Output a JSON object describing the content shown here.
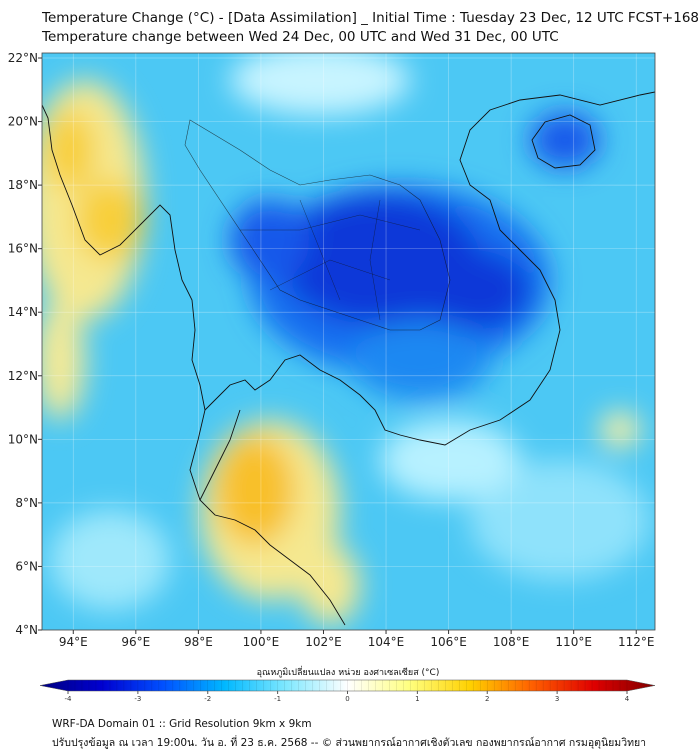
{
  "header": {
    "title_line1": "Temperature Change (°C) - [Data Assimilation] _ Initial Time : Tuesday 23 Dec, 12 UTC FCST+168",
    "title_line2": "Temperature change between Wed 24 Dec, 00 UTC and Wed 31 Dec, 00 UTC"
  },
  "map": {
    "lat_labels": [
      "4°N",
      "6°N",
      "8°N",
      "10°N",
      "12°N",
      "14°N",
      "16°N",
      "18°N",
      "20°N",
      "22°N"
    ],
    "lon_labels": [
      "94°E",
      "96°E",
      "98°E",
      "100°E",
      "102°E",
      "104°E",
      "106°E",
      "108°E",
      "110°E",
      "112°E"
    ],
    "lat_range": [
      4,
      22
    ],
    "lon_range": [
      93,
      112.6
    ]
  },
  "colorbar": {
    "title": "อุณหภูมิเปลี่ยนแปลง หน่วย องศาเซลเซียส (°C)",
    "ticks": [
      "-4",
      "-3",
      "-2",
      "-1",
      "0",
      "1",
      "2",
      "3",
      "4"
    ],
    "range": [
      -4,
      4
    ],
    "colors": [
      "#00007f",
      "#0000d0",
      "#0050ff",
      "#00b8ff",
      "#7fe8ff",
      "#ffffff",
      "#ffff80",
      "#ffd000",
      "#ff6000",
      "#e00000",
      "#7f0000"
    ]
  },
  "footer": {
    "line1": "WRF-DA Domain 01 :: Grid Resolution 9km x 9km",
    "line2": "ปรับปรุงข้อมูล ณ เวลา 19:00น. วัน อ. ที่ 23 ธ.ค. 2568 -- © ส่วนพยากรณ์อากาศเชิงตัวเลข กองพยากรณ์อากาศ กรมอุตุนิยมวิทยา"
  }
}
